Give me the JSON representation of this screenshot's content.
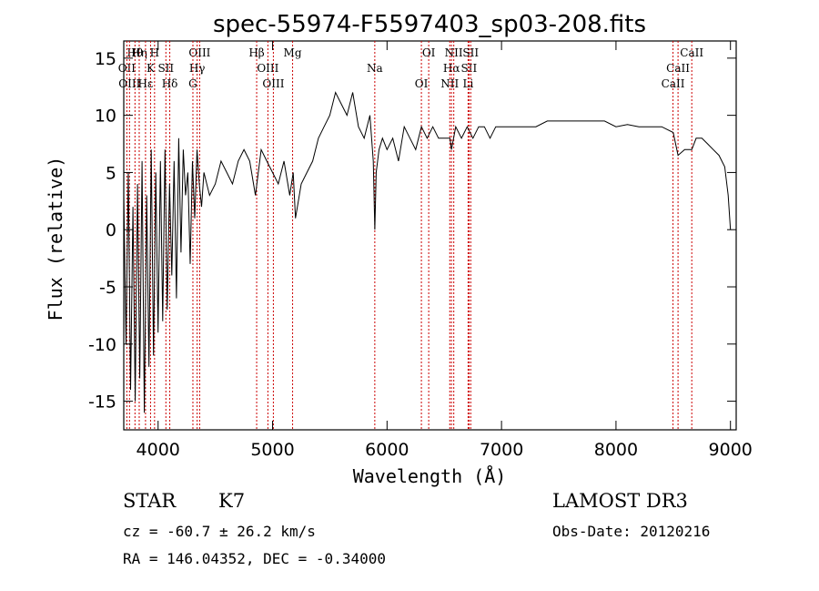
{
  "chart_data": {
    "type": "line",
    "title": "spec-55974-F5597403_sp03-208.fits",
    "xlabel": "Wavelength (Å)",
    "ylabel": "Flux (relative)",
    "xlim": [
      3700,
      9050
    ],
    "ylim": [
      -17.5,
      16.5
    ],
    "x_ticks": [
      4000,
      5000,
      6000,
      7000,
      8000,
      9000
    ],
    "y_ticks": [
      -15,
      -10,
      -5,
      0,
      5,
      10,
      15
    ],
    "grid": false,
    "series": [
      {
        "name": "flux",
        "x": [
          3700,
          3720,
          3740,
          3760,
          3780,
          3800,
          3820,
          3840,
          3860,
          3880,
          3900,
          3920,
          3940,
          3960,
          3980,
          4000,
          4020,
          4040,
          4060,
          4080,
          4100,
          4120,
          4140,
          4160,
          4180,
          4200,
          4220,
          4240,
          4260,
          4280,
          4300,
          4320,
          4340,
          4360,
          4380,
          4400,
          4450,
          4500,
          4550,
          4600,
          4650,
          4700,
          4750,
          4800,
          4850,
          4900,
          4950,
          5000,
          5050,
          5100,
          5150,
          5180,
          5200,
          5250,
          5300,
          5350,
          5400,
          5450,
          5500,
          5550,
          5600,
          5650,
          5700,
          5750,
          5800,
          5850,
          5880,
          5893,
          5905,
          5930,
          5960,
          6000,
          6050,
          6100,
          6150,
          6200,
          6250,
          6300,
          6350,
          6400,
          6450,
          6500,
          6550,
          6563,
          6600,
          6650,
          6700,
          6750,
          6800,
          6850,
          6900,
          6950,
          7000,
          7050,
          7100,
          7150,
          7200,
          7300,
          7400,
          7500,
          7600,
          7700,
          7800,
          7900,
          8000,
          8100,
          8200,
          8300,
          8400,
          8500,
          8542,
          8600,
          8662,
          8700,
          8750,
          8800,
          8850,
          8900,
          8950,
          8980,
          9000
        ],
        "values": [
          3,
          -10,
          5,
          -14,
          2,
          -15,
          4,
          -13,
          6,
          -16,
          3,
          -12,
          7,
          -11,
          5,
          -9,
          6,
          -8,
          7,
          -7,
          4,
          -4,
          6,
          -6,
          8,
          -2,
          7,
          3,
          5,
          -3,
          6,
          1,
          7,
          4,
          2,
          5,
          3,
          4,
          6,
          5,
          4,
          6,
          7,
          6,
          3,
          7,
          6,
          5,
          4,
          6,
          3,
          5,
          1,
          4,
          5,
          6,
          8,
          9,
          10,
          12,
          11,
          10,
          12,
          9,
          8,
          10,
          6,
          0,
          5,
          7,
          8,
          7,
          8,
          6,
          9,
          8,
          7,
          9,
          8,
          9,
          8,
          8,
          8,
          7,
          9,
          8,
          9,
          8,
          9,
          9,
          8,
          9,
          9,
          9,
          9,
          9,
          9,
          9,
          9.5,
          9.5,
          9.5,
          9.5,
          9.5,
          9.5,
          9,
          9.2,
          9,
          9,
          9,
          8.5,
          6.5,
          7,
          7,
          8,
          8,
          7.5,
          7,
          6.5,
          5.5,
          3,
          0
        ]
      }
    ],
    "line_ids": [
      {
        "label": "Hθ",
        "x": 3798
      },
      {
        "label": "OII",
        "x": 3727
      },
      {
        "label": "OIII",
        "x": 3750
      },
      {
        "label": "Hη",
        "x": 3835
      },
      {
        "label": "K",
        "x": 3934
      },
      {
        "label": "Hε",
        "x": 3890
      },
      {
        "label": "H",
        "x": 3969
      },
      {
        "label": "SII",
        "x": 4068
      },
      {
        "label": "Hδ",
        "x": 4102
      },
      {
        "label": "OIII",
        "x": 4363
      },
      {
        "label": "Hγ",
        "x": 4341
      },
      {
        "label": "G",
        "x": 4304
      },
      {
        "label": "Hβ",
        "x": 4861
      },
      {
        "label": "OIII",
        "x": 4959
      },
      {
        "label": "OIII",
        "x": 5007
      },
      {
        "label": "Mg",
        "x": 5175
      },
      {
        "label": "Na",
        "x": 5893
      },
      {
        "label": "OI",
        "x": 6300
      },
      {
        "label": "OI",
        "x": 6364
      },
      {
        "label": "Hα",
        "x": 6563
      },
      {
        "label": "NII",
        "x": 6548
      },
      {
        "label": "NII",
        "x": 6583
      },
      {
        "label": "SII",
        "x": 6716
      },
      {
        "label": "Li",
        "x": 6708
      },
      {
        "label": "SII",
        "x": 6731
      },
      {
        "label": "CaII",
        "x": 8542
      },
      {
        "label": "CaII",
        "x": 8498
      },
      {
        "label": "CaII",
        "x": 8662
      }
    ]
  },
  "info": {
    "class": "STAR",
    "subclass": "K7",
    "survey": "LAMOST DR3",
    "cz": "cz = -60.7 ± 26.2 km/s",
    "obs_date": "Obs-Date: 20120216",
    "coords": "RA = 146.04352, DEC =  -0.34000"
  }
}
